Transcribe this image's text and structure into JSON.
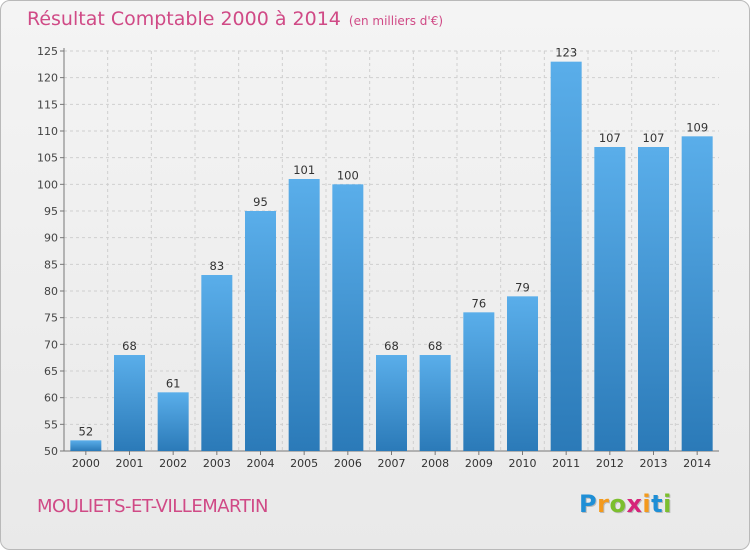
{
  "chart_data": {
    "type": "bar",
    "title": "Résultat Comptable 2000 à 2014",
    "subtitle": "(en milliers d'€)",
    "categories": [
      "2000",
      "2001",
      "2002",
      "2003",
      "2004",
      "2005",
      "2006",
      "2007",
      "2008",
      "2009",
      "2010",
      "2011",
      "2012",
      "2013",
      "2014"
    ],
    "values": [
      52,
      68,
      61,
      83,
      95,
      101,
      100,
      68,
      68,
      76,
      79,
      123,
      107,
      107,
      109
    ],
    "ylim": [
      50,
      125
    ],
    "yticks": [
      50,
      55,
      60,
      65,
      70,
      75,
      80,
      85,
      90,
      95,
      100,
      105,
      110,
      115,
      120,
      125
    ],
    "xlabel": "",
    "ylabel": "",
    "grid": true,
    "colors": {
      "bar_top": "#5aaeea",
      "bar_bottom": "#2b7ab8",
      "title": "#d04a86"
    }
  },
  "footer": {
    "commune": "MOULIETS-ET-VILLEMARTIN",
    "logo_letters": [
      {
        "ch": "P",
        "color": "#1f8fd6"
      },
      {
        "ch": "r",
        "color": "#f39a1d"
      },
      {
        "ch": "o",
        "color": "#7cbf2e"
      },
      {
        "ch": "x",
        "color": "#d6257a"
      },
      {
        "ch": "i",
        "color": "#f39a1d"
      },
      {
        "ch": "t",
        "color": "#1f8fd6"
      },
      {
        "ch": "i",
        "color": "#7cbf2e"
      }
    ]
  }
}
